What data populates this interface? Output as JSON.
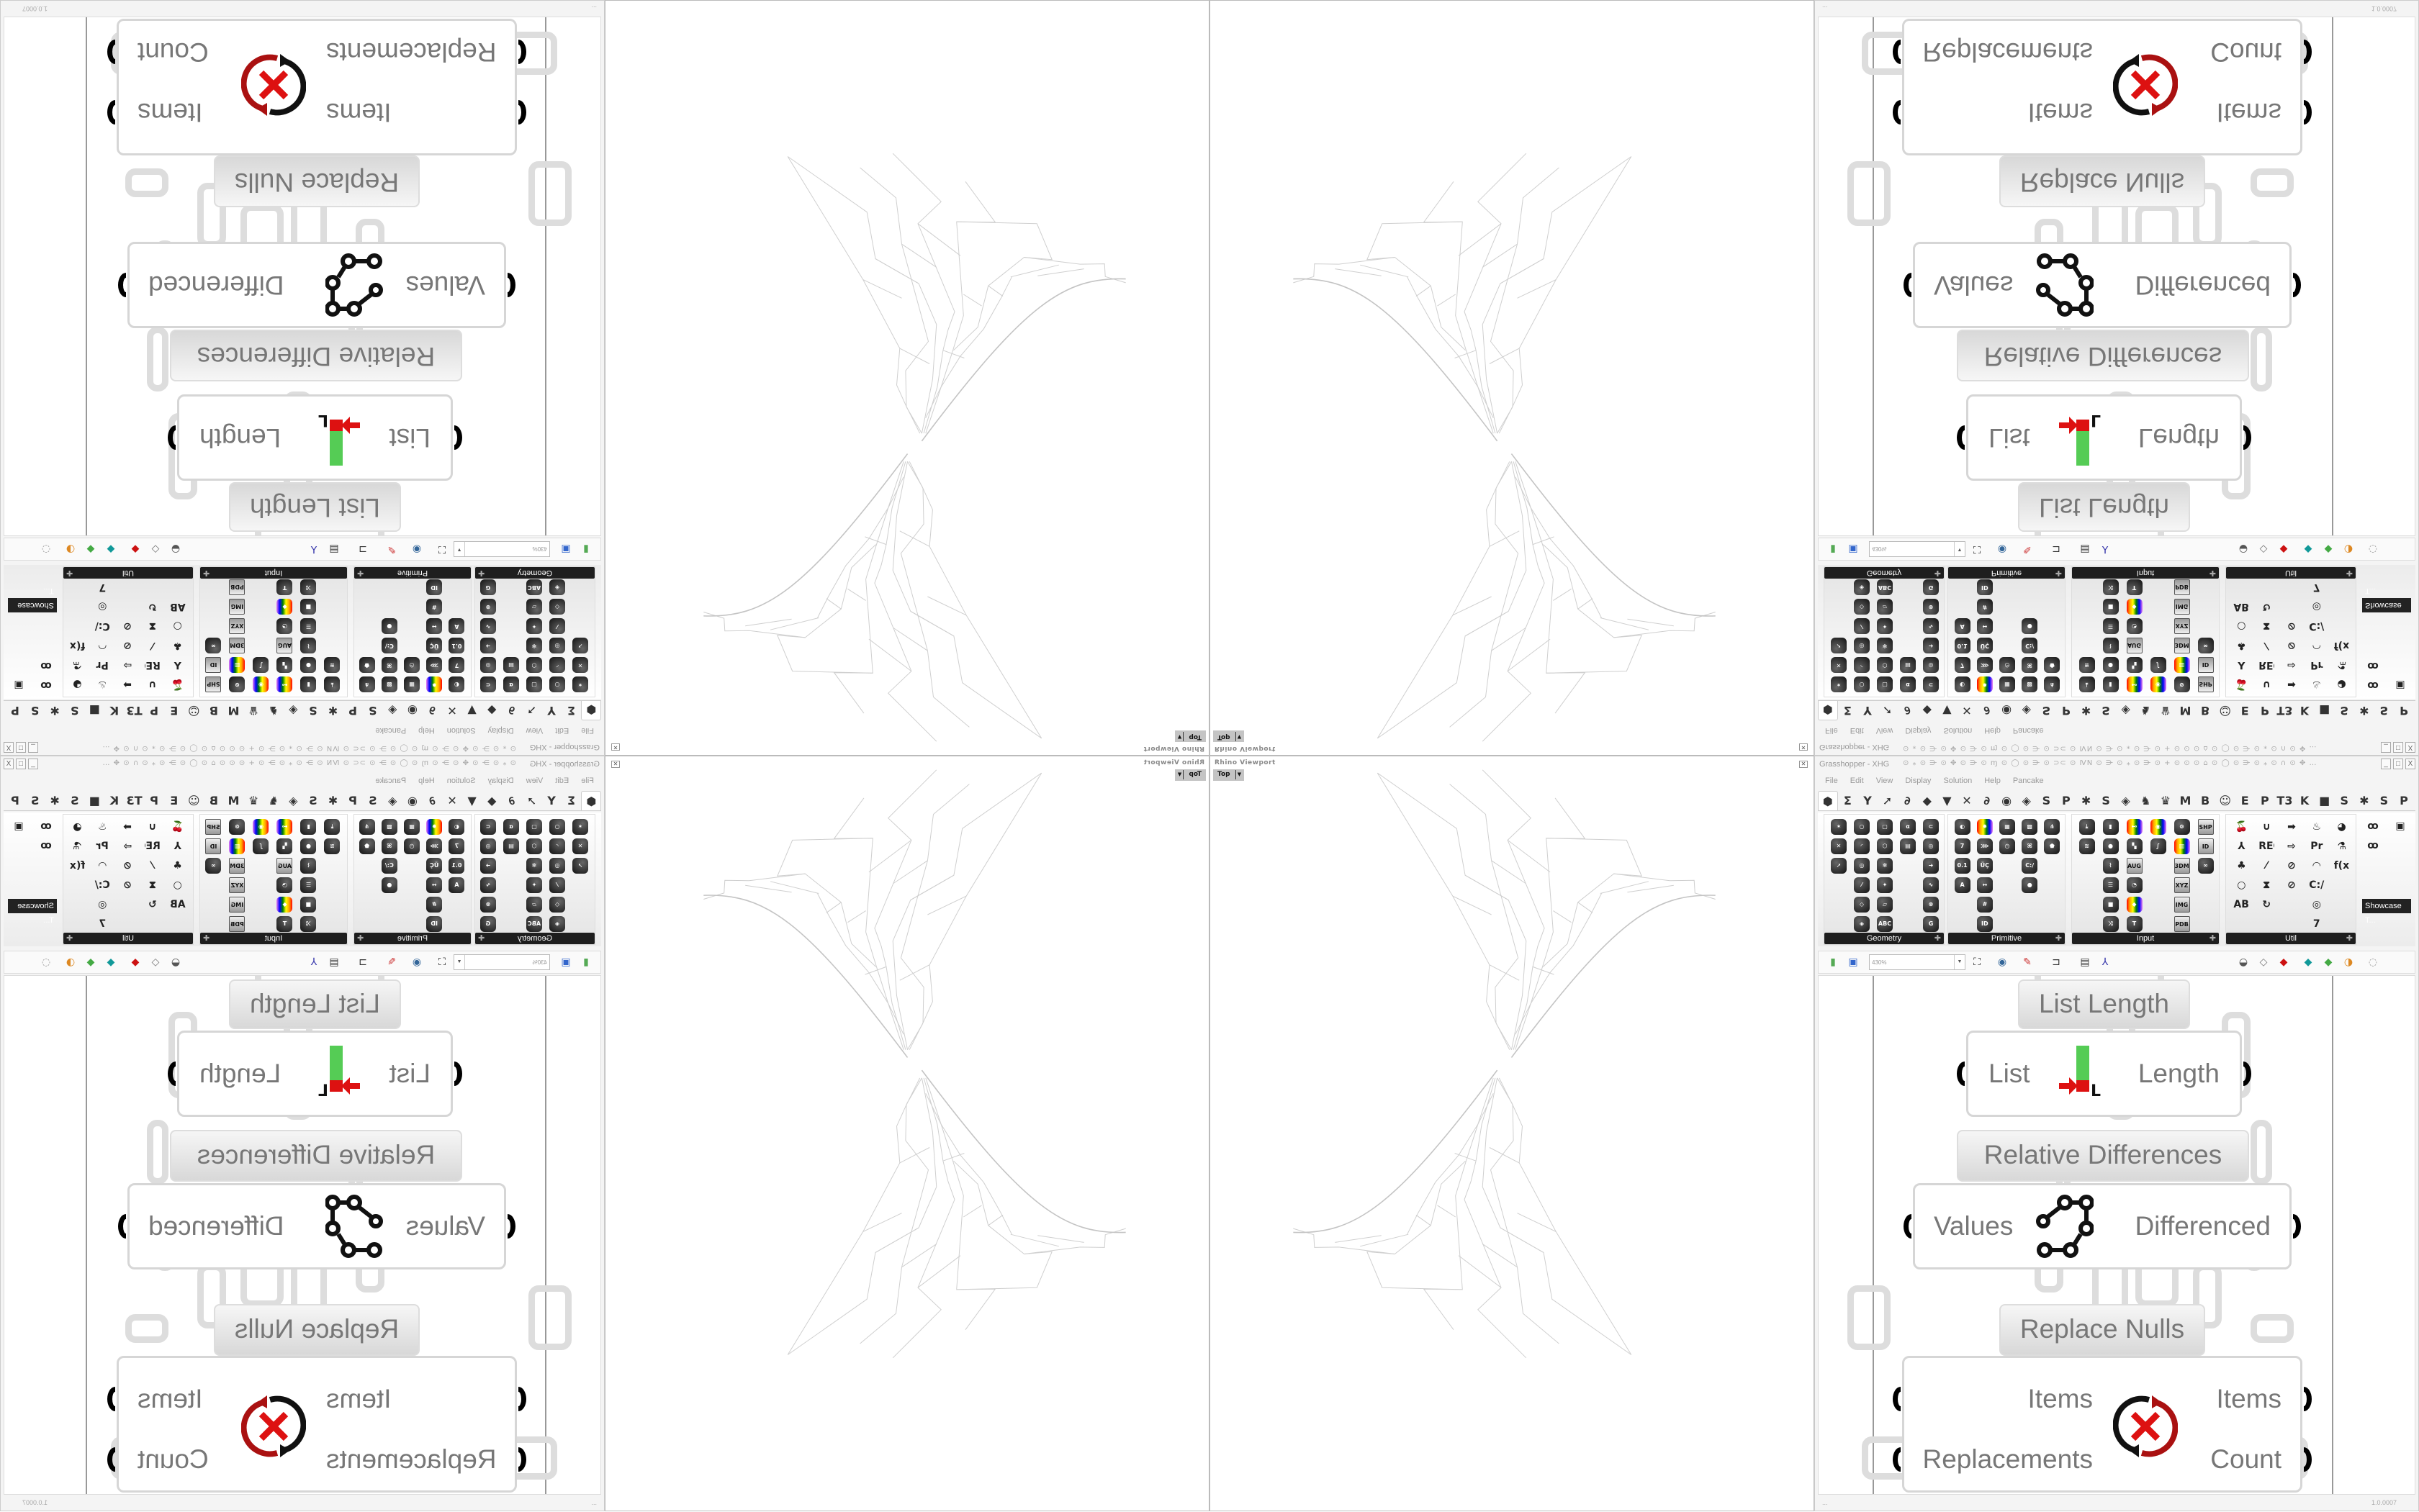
{
  "viewport": {
    "title": "Rhino Viewport",
    "view": "Top",
    "close_icon": "close-icon"
  },
  "grasshopper": {
    "title": "Grasshopper - XHG",
    "title_decor": "⊙ ⁎ ⊙ ⋺ ⊙ ✥ ⊙ ⋺ ⊙ ɱ ⊙ ◯ ⊙ ⋺ ⊙ ⊃⊂ ⊙ ⅣN ⊙ ⋺ ⊙ ⁎ ⊙ ⋺ ⊙ + ⊙ ⊙ ⊙ ⌂ ⊙ ◯ ⊙ ⋺ ⊙ ⁎ ⊙ ∩ ⊙ ✥ …",
    "window_buttons": [
      "_",
      "□",
      "X"
    ],
    "menu": [
      "File",
      "Edit",
      "View",
      "Display",
      "Solution",
      "Help",
      "Pancake"
    ],
    "tabs": [
      "⬢",
      "Σ",
      "Y",
      "➚",
      "∂",
      "◆",
      "▼",
      "✕",
      "∂",
      "◉",
      "◈",
      "S",
      "P",
      "✱",
      "S",
      "◈",
      "♞",
      "♛",
      "M",
      "B",
      "☺",
      "E",
      "P",
      "T3",
      "K",
      "■",
      "S",
      "✱",
      "S",
      "P"
    ],
    "panels": [
      {
        "label": "Geometry",
        "columns": [
          [
            {
              "n": "point",
              "g": "✶"
            },
            {
              "n": "vector",
              "g": "✕"
            },
            {
              "n": "direction",
              "g": "➚"
            }
          ],
          [
            {
              "n": "circle",
              "g": "○"
            },
            {
              "n": "arc",
              "g": "◜"
            },
            {
              "n": "curve",
              "g": "◎"
            },
            {
              "n": "line",
              "g": "⁄"
            },
            {
              "n": "plane",
              "g": "◇"
            },
            {
              "n": "rectangle",
              "g": "◈"
            }
          ],
          [
            {
              "n": "box",
              "g": "▢"
            },
            {
              "n": "brep",
              "g": "⬡"
            },
            {
              "n": "mesh",
              "g": "✻"
            },
            {
              "n": "surface",
              "g": "✦"
            },
            {
              "n": "twisted-box",
              "g": "▱"
            },
            {
              "n": "geometry-text",
              "g": "ABC"
            }
          ],
          [
            {
              "n": "circular-arc",
              "g": "α"
            },
            {
              "n": "mesh-face",
              "g": "▤"
            }
          ],
          [
            {
              "n": "field",
              "g": "⊂"
            },
            {
              "n": "spiral",
              "g": "◎"
            },
            {
              "n": "transform",
              "g": "➜"
            },
            {
              "n": "group",
              "g": "∿"
            },
            {
              "n": "geometry-cache",
              "g": "⊗"
            },
            {
              "n": "geometry-pipeline",
              "g": "G"
            }
          ]
        ]
      },
      {
        "label": "Primitive",
        "columns": [
          [
            {
              "n": "boolean",
              "g": "◐"
            },
            {
              "n": "integer",
              "g": "7"
            },
            {
              "n": "number",
              "g": "0.1"
            },
            {
              "n": "text",
              "g": "A"
            }
          ],
          [
            {
              "n": "colour",
              "g": "✹"
            },
            {
              "n": "domain",
              "g": "⋙"
            },
            {
              "n": "culture",
              "g": "ÜÇ"
            },
            {
              "n": "interval",
              "g": "↔"
            },
            {
              "n": "complex",
              "g": "#"
            },
            {
              "n": "guid",
              "g": "ID"
            }
          ],
          [
            {
              "n": "matrix",
              "g": "▦"
            },
            {
              "n": "time",
              "g": "◷"
            }
          ],
          [
            {
              "n": "shader",
              "g": "▩"
            },
            {
              "n": "data-path",
              "g": "⌘"
            },
            {
              "n": "file-path",
              "g": "C:/"
            },
            {
              "n": "sphere",
              "g": "●"
            }
          ],
          [
            {
              "n": "structure-path",
              "g": "⋔"
            },
            {
              "n": "mesh-param",
              "g": "⬟"
            }
          ]
        ]
      },
      {
        "label": "Input",
        "columns": [
          [
            {
              "n": "import",
              "g": "⤓"
            },
            {
              "n": "gradient",
              "g": "≋"
            }
          ],
          [
            {
              "n": "boolean-toggle",
              "g": "▮"
            },
            {
              "n": "button",
              "g": "●"
            },
            {
              "n": "digit-scroller",
              "g": "⌇"
            },
            {
              "n": "value-list",
              "g": "☰"
            },
            {
              "n": "panel",
              "g": "■"
            },
            {
              "n": "control-knob",
              "g": "⤨"
            }
          ],
          [
            {
              "n": "colour-swatch",
              "g": "⊷"
            },
            {
              "n": "gradient-control",
              "g": "▚"
            },
            {
              "n": "calendar",
              "g": "AUG 20"
            },
            {
              "n": "clock",
              "g": "◔"
            },
            {
              "n": "colour-picker",
              "g": "◆"
            },
            {
              "n": "custom-preview",
              "g": "T"
            }
          ],
          [
            {
              "n": "colour-wheel",
              "g": "◉"
            },
            {
              "n": "graph-mapper",
              "g": "∫"
            }
          ],
          [
            {
              "n": "atom-data",
              "g": "⊚"
            },
            {
              "n": "spectrum",
              "g": "▥"
            },
            {
              "n": "import-3dm",
              "g": "3DM"
            },
            {
              "n": "import-xyz",
              "g": "XYZ"
            },
            {
              "n": "import-image",
              "g": "IMG"
            },
            {
              "n": "import-pdb",
              "g": "PDB"
            }
          ],
          [
            {
              "n": "import-shp",
              "g": "SHP"
            },
            {
              "n": "object-id",
              "g": "ID"
            },
            {
              "n": "infinite",
              "g": "∞"
            }
          ]
        ]
      },
      {
        "label": "Util",
        "columns": [
          [
            {
              "n": "cherry-picker",
              "g": "🍒"
            },
            {
              "n": "axes",
              "g": "⅄"
            },
            {
              "n": "tree",
              "g": "♣"
            },
            {
              "n": "blob",
              "g": "○"
            },
            {
              "n": "abc",
              "g": "ABC"
            }
          ],
          [
            {
              "n": "magnet",
              "g": "∪"
            },
            {
              "n": "record",
              "g": "REC"
            },
            {
              "n": "fuse",
              "g": "⁄"
            },
            {
              "n": "hourglass",
              "g": "⧗"
            },
            {
              "n": "timer",
              "g": "↻"
            }
          ],
          [
            {
              "n": "arrow",
              "g": "➡"
            },
            {
              "n": "arrow-outline",
              "g": "⇨"
            },
            {
              "n": "compass",
              "g": "⊘"
            },
            {
              "n": "compass-alt",
              "g": "⊘"
            }
          ],
          [
            {
              "n": "fire",
              "g": "♨"
            },
            {
              "n": "premiere",
              "g": "Pr"
            },
            {
              "n": "gauge",
              "g": "◠"
            },
            {
              "n": "path",
              "g": "C:/"
            },
            {
              "n": "spiral-util",
              "g": "◎"
            },
            {
              "n": "integer-util",
              "g": "7"
            }
          ],
          [
            {
              "n": "eye",
              "g": "◕"
            },
            {
              "n": "flask",
              "g": "⚗"
            },
            {
              "n": "expression",
              "g": "f(x)"
            }
          ]
        ]
      }
    ],
    "showcase": {
      "label": "Showcase T...",
      "icons": [
        {
          "n": "showcase-a",
          "g": "ꝏ"
        },
        {
          "n": "showcase-b",
          "g": "ꝏ"
        },
        {
          "n": "showcase-c",
          "g": "▣"
        }
      ]
    },
    "toolbar": {
      "zoom": "430%",
      "left_icons": [
        "open-file-icon",
        "save-file-icon",
        "zoom-extents-icon",
        "preview-icon",
        "sketch-icon",
        "group-icon",
        "cluster-icon",
        "axes-icon"
      ],
      "right_icons": [
        "preview-shaded-icon",
        "preview-wire-icon",
        "preview-red-icon",
        "preview-teal-icon",
        "preview-green-icon",
        "preview-sphere-icon",
        "selection-icon"
      ]
    },
    "canvas": {
      "list_length": {
        "title": "List Length",
        "input": "List",
        "output": "Length"
      },
      "relative_differences": {
        "title": "Relative Differences",
        "input": "Values",
        "output": "Differenced"
      },
      "replace_nulls": {
        "title": "Replace Nulls",
        "inputs": [
          "Items",
          "Replacements"
        ],
        "outputs": [
          "Items",
          "Count"
        ]
      }
    },
    "status": {
      "left": "...",
      "version": "1.0.0007"
    }
  }
}
